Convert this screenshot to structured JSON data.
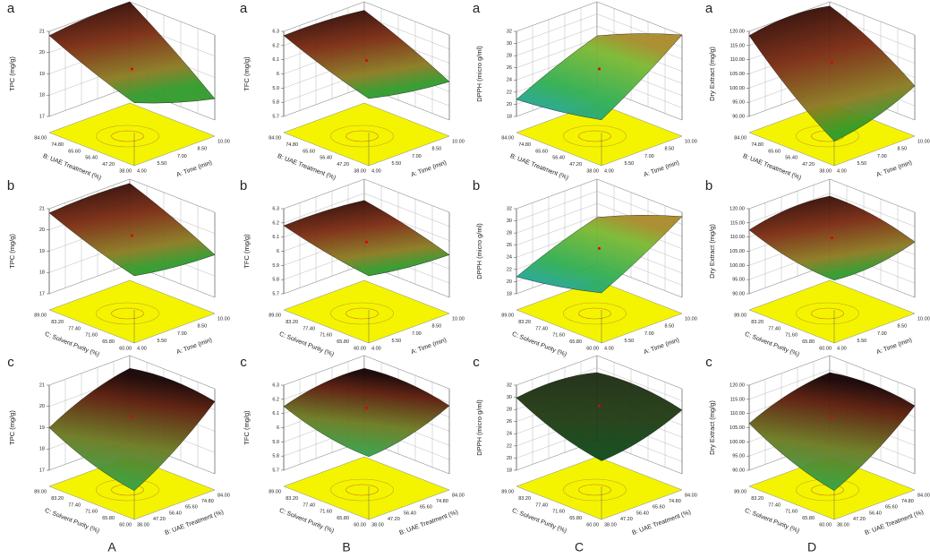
{
  "columns": [
    {
      "label": "A",
      "z_label": "TPC (mg/g)",
      "z_ticks": [
        "21",
        "20",
        "19",
        "18",
        "17"
      ],
      "panels": [
        {
          "letter": "a",
          "left_axis": {
            "label": "B: UAE Treatment (%)",
            "ticks": [
              "84.00",
              "74.80",
              "65.60",
              "56.40",
              "47.20",
              "38.00"
            ]
          },
          "right_axis": {
            "label": "A: Time (min)",
            "ticks": [
              "4.00",
              "5.50",
              "7.00",
              "8.50",
              "10.00"
            ]
          }
        },
        {
          "letter": "b",
          "left_axis": {
            "label": "C: Solvent Purity (%)",
            "ticks": [
              "89.00",
              "83.20",
              "77.40",
              "71.60",
              "65.80",
              "60.00"
            ]
          },
          "right_axis": {
            "label": "A: Time (min)",
            "ticks": [
              "4.00",
              "5.50",
              "7.00",
              "8.50",
              "10.00"
            ]
          }
        },
        {
          "letter": "c",
          "left_axis": {
            "label": "C: Solvent Purity (%)",
            "ticks": [
              "89.00",
              "83.20",
              "77.40",
              "71.60",
              "65.80",
              "60.00"
            ]
          },
          "right_axis": {
            "label": "B: UAE Treatment (%)",
            "ticks": [
              "38.00",
              "47.20",
              "56.40",
              "65.60",
              "74.80",
              "84.00"
            ]
          }
        }
      ]
    },
    {
      "label": "B",
      "z_label": "TFC (mg/g)",
      "z_ticks": [
        "6.3",
        "6.2",
        "6.1",
        "6",
        "5.9",
        "5.8",
        "5.7"
      ],
      "panels": [
        {
          "letter": "a",
          "left_axis": {
            "label": "B: UAE Treatment (%)",
            "ticks": [
              "84.00",
              "74.80",
              "65.60",
              "56.40",
              "47.20",
              "38.00"
            ]
          },
          "right_axis": {
            "label": "A: Time (min)",
            "ticks": [
              "4.00",
              "5.50",
              "7.00",
              "8.50",
              "10.00"
            ]
          }
        },
        {
          "letter": "b",
          "left_axis": {
            "label": "C: Solvent Purity (%)",
            "ticks": [
              "89.00",
              "83.20",
              "77.40",
              "71.60",
              "65.80",
              "60.00"
            ]
          },
          "right_axis": {
            "label": "A: Time (min)",
            "ticks": [
              "4.00",
              "5.50",
              "7.00",
              "8.50",
              "10.00"
            ]
          }
        },
        {
          "letter": "c",
          "left_axis": {
            "label": "C: Solvent Purity (%)",
            "ticks": [
              "89.00",
              "83.20",
              "77.40",
              "71.60",
              "65.80",
              "60.00"
            ]
          },
          "right_axis": {
            "label": "B: UAE Treatment (%)",
            "ticks": [
              "38.00",
              "47.20",
              "56.40",
              "65.60",
              "74.80",
              "84.00"
            ]
          }
        }
      ]
    },
    {
      "label": "C",
      "z_label": "DPPH (micro g/ml)",
      "z_ticks": [
        "32",
        "30",
        "28",
        "26",
        "24",
        "22",
        "20",
        "18"
      ],
      "panels": [
        {
          "letter": "a",
          "left_axis": {
            "label": "B: UAE Treatment (%)",
            "ticks": [
              "84.00",
              "74.80",
              "65.60",
              "56.40",
              "47.20",
              "38.00"
            ]
          },
          "right_axis": {
            "label": "A: Time (min)",
            "ticks": [
              "4.00",
              "5.50",
              "7.00",
              "8.50",
              "10.00"
            ]
          }
        },
        {
          "letter": "b",
          "left_axis": {
            "label": "C: Solvent Purity (%)",
            "ticks": [
              "89.00",
              "83.20",
              "77.40",
              "71.60",
              "65.80",
              "60.00"
            ]
          },
          "right_axis": {
            "label": "A: Time (min)",
            "ticks": [
              "4.00",
              "5.50",
              "7.00",
              "8.50",
              "10.00"
            ]
          }
        },
        {
          "letter": "c",
          "left_axis": {
            "label": "C: Solvent Purity (%)",
            "ticks": [
              "89.00",
              "83.20",
              "77.40",
              "71.60",
              "65.80",
              "60.00"
            ]
          },
          "right_axis": {
            "label": "B: UAE Treatment (%)",
            "ticks": [
              "38.00",
              "47.20",
              "56.40",
              "65.60",
              "74.80",
              "84.00"
            ]
          }
        }
      ]
    },
    {
      "label": "D",
      "z_label": "Dry Extract (mg/g)",
      "z_ticks": [
        "120.00",
        "115.00",
        "110.00",
        "105.00",
        "100.00",
        "95.00",
        "90.00"
      ],
      "panels": [
        {
          "letter": "a",
          "left_axis": {
            "label": "B: UAE Treatment (%)",
            "ticks": [
              "84.00",
              "74.80",
              "65.60",
              "56.40",
              "47.20",
              "38.00"
            ]
          },
          "right_axis": {
            "label": "A: Time (min)",
            "ticks": [
              "4.00",
              "5.50",
              "7.00",
              "8.50",
              "10.00"
            ]
          }
        },
        {
          "letter": "b",
          "left_axis": {
            "label": "C: Solvent Purity (%)",
            "ticks": [
              "89.00",
              "83.20",
              "77.40",
              "71.60",
              "65.80",
              "60.00"
            ]
          },
          "right_axis": {
            "label": "A: Time (min)",
            "ticks": [
              "4.00",
              "5.50",
              "7.00",
              "8.50",
              "10.00"
            ]
          }
        },
        {
          "letter": "c",
          "left_axis": {
            "label": "C: Solvent Purity (%)",
            "ticks": [
              "89.00",
              "83.20",
              "77.40",
              "71.60",
              "65.80",
              "60.00"
            ]
          },
          "right_axis": {
            "label": "B: UAE Treatment (%)",
            "ticks": [
              "38.00",
              "47.20",
              "56.40",
              "65.60",
              "74.80",
              "84.00"
            ]
          }
        }
      ]
    }
  ]
}
